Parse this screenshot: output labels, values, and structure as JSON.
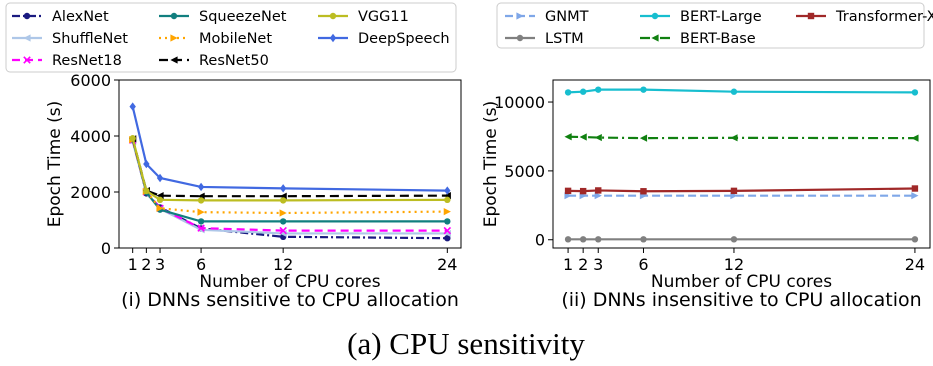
{
  "caption": "(a) CPU sensitivity",
  "chart_data": [
    {
      "type": "line",
      "subtitle": "(i) DNNs sensitive to CPU allocation",
      "xlabel": "Number of CPU cores",
      "ylabel": "Epoch Time (s)",
      "x": [
        1,
        2,
        3,
        6,
        12,
        24
      ],
      "xticks": [
        "1",
        "2",
        "3",
        "6",
        "12",
        "24"
      ],
      "yticks": [
        "0",
        "2000",
        "4000",
        "6000"
      ],
      "ylim": [
        0,
        6000
      ],
      "xlim": [
        0,
        25
      ],
      "grid": false,
      "legend_position": "top",
      "series": [
        {
          "name": "AlexNet",
          "color": "#1a1a80",
          "dash": "8,3,2,3",
          "marker": "circle",
          "values": [
            3850,
            1950,
            1450,
            700,
            400,
            350
          ]
        },
        {
          "name": "ShuffleNet",
          "color": "#aec7e8",
          "dash": "",
          "marker": "tri-left",
          "values": [
            3800,
            1980,
            1400,
            650,
            520,
            520
          ]
        },
        {
          "name": "ResNet18",
          "color": "#ff00ff",
          "dash": "8,5",
          "marker": "x",
          "values": [
            3850,
            2000,
            1420,
            710,
            620,
            620
          ]
        },
        {
          "name": "SqueezeNet",
          "color": "#117f7f",
          "dash": "",
          "marker": "circle",
          "values": [
            3880,
            1990,
            1370,
            950,
            950,
            950
          ]
        },
        {
          "name": "MobileNet",
          "color": "#ffa500",
          "dash": "2,4",
          "marker": "tri-right",
          "values": [
            3870,
            2020,
            1420,
            1280,
            1250,
            1300
          ]
        },
        {
          "name": "ResNet50",
          "color": "#000000",
          "dash": "9,5",
          "marker": "tri-left",
          "values": [
            3900,
            2050,
            1870,
            1850,
            1850,
            1870
          ]
        },
        {
          "name": "VGG11",
          "color": "#bcbd22",
          "dash": "",
          "marker": "circle",
          "values": [
            3920,
            2040,
            1720,
            1700,
            1700,
            1720
          ]
        },
        {
          "name": "DeepSpeech",
          "color": "#4169e1",
          "dash": "",
          "marker": "diamond",
          "values": [
            5050,
            3000,
            2500,
            2180,
            2130,
            2050
          ]
        }
      ]
    },
    {
      "type": "line",
      "subtitle": "(ii) DNNs insensitive to CPU allocation",
      "xlabel": "Number of CPU cores",
      "ylabel": "Epoch Time (s)",
      "x": [
        1,
        2,
        3,
        6,
        12,
        24
      ],
      "xticks": [
        "1",
        "2",
        "3",
        "6",
        "12",
        "24"
      ],
      "yticks": [
        "0",
        "5000",
        "10000"
      ],
      "ylim": [
        -600,
        11600
      ],
      "xlim": [
        0,
        25
      ],
      "grid": false,
      "legend_position": "top",
      "series": [
        {
          "name": "GNMT",
          "color": "#7fa7e8",
          "dash": "8,4",
          "marker": "tri-right",
          "values": [
            3200,
            3200,
            3200,
            3200,
            3200,
            3200
          ]
        },
        {
          "name": "LSTM",
          "color": "#808080",
          "dash": "",
          "marker": "circle",
          "values": [
            30,
            30,
            30,
            30,
            30,
            30
          ]
        },
        {
          "name": "BERT-Large",
          "color": "#17becf",
          "dash": "",
          "marker": "circle",
          "values": [
            10700,
            10750,
            10900,
            10900,
            10750,
            10700
          ]
        },
        {
          "name": "BERT-Base",
          "color": "#108010",
          "dash": "10,4,2,4",
          "marker": "tri-left",
          "values": [
            7480,
            7460,
            7420,
            7380,
            7400,
            7380
          ]
        },
        {
          "name": "Transformer-XL",
          "color": "#a02828",
          "dash": "",
          "marker": "square",
          "values": [
            3550,
            3530,
            3580,
            3520,
            3550,
            3720
          ]
        }
      ]
    }
  ]
}
